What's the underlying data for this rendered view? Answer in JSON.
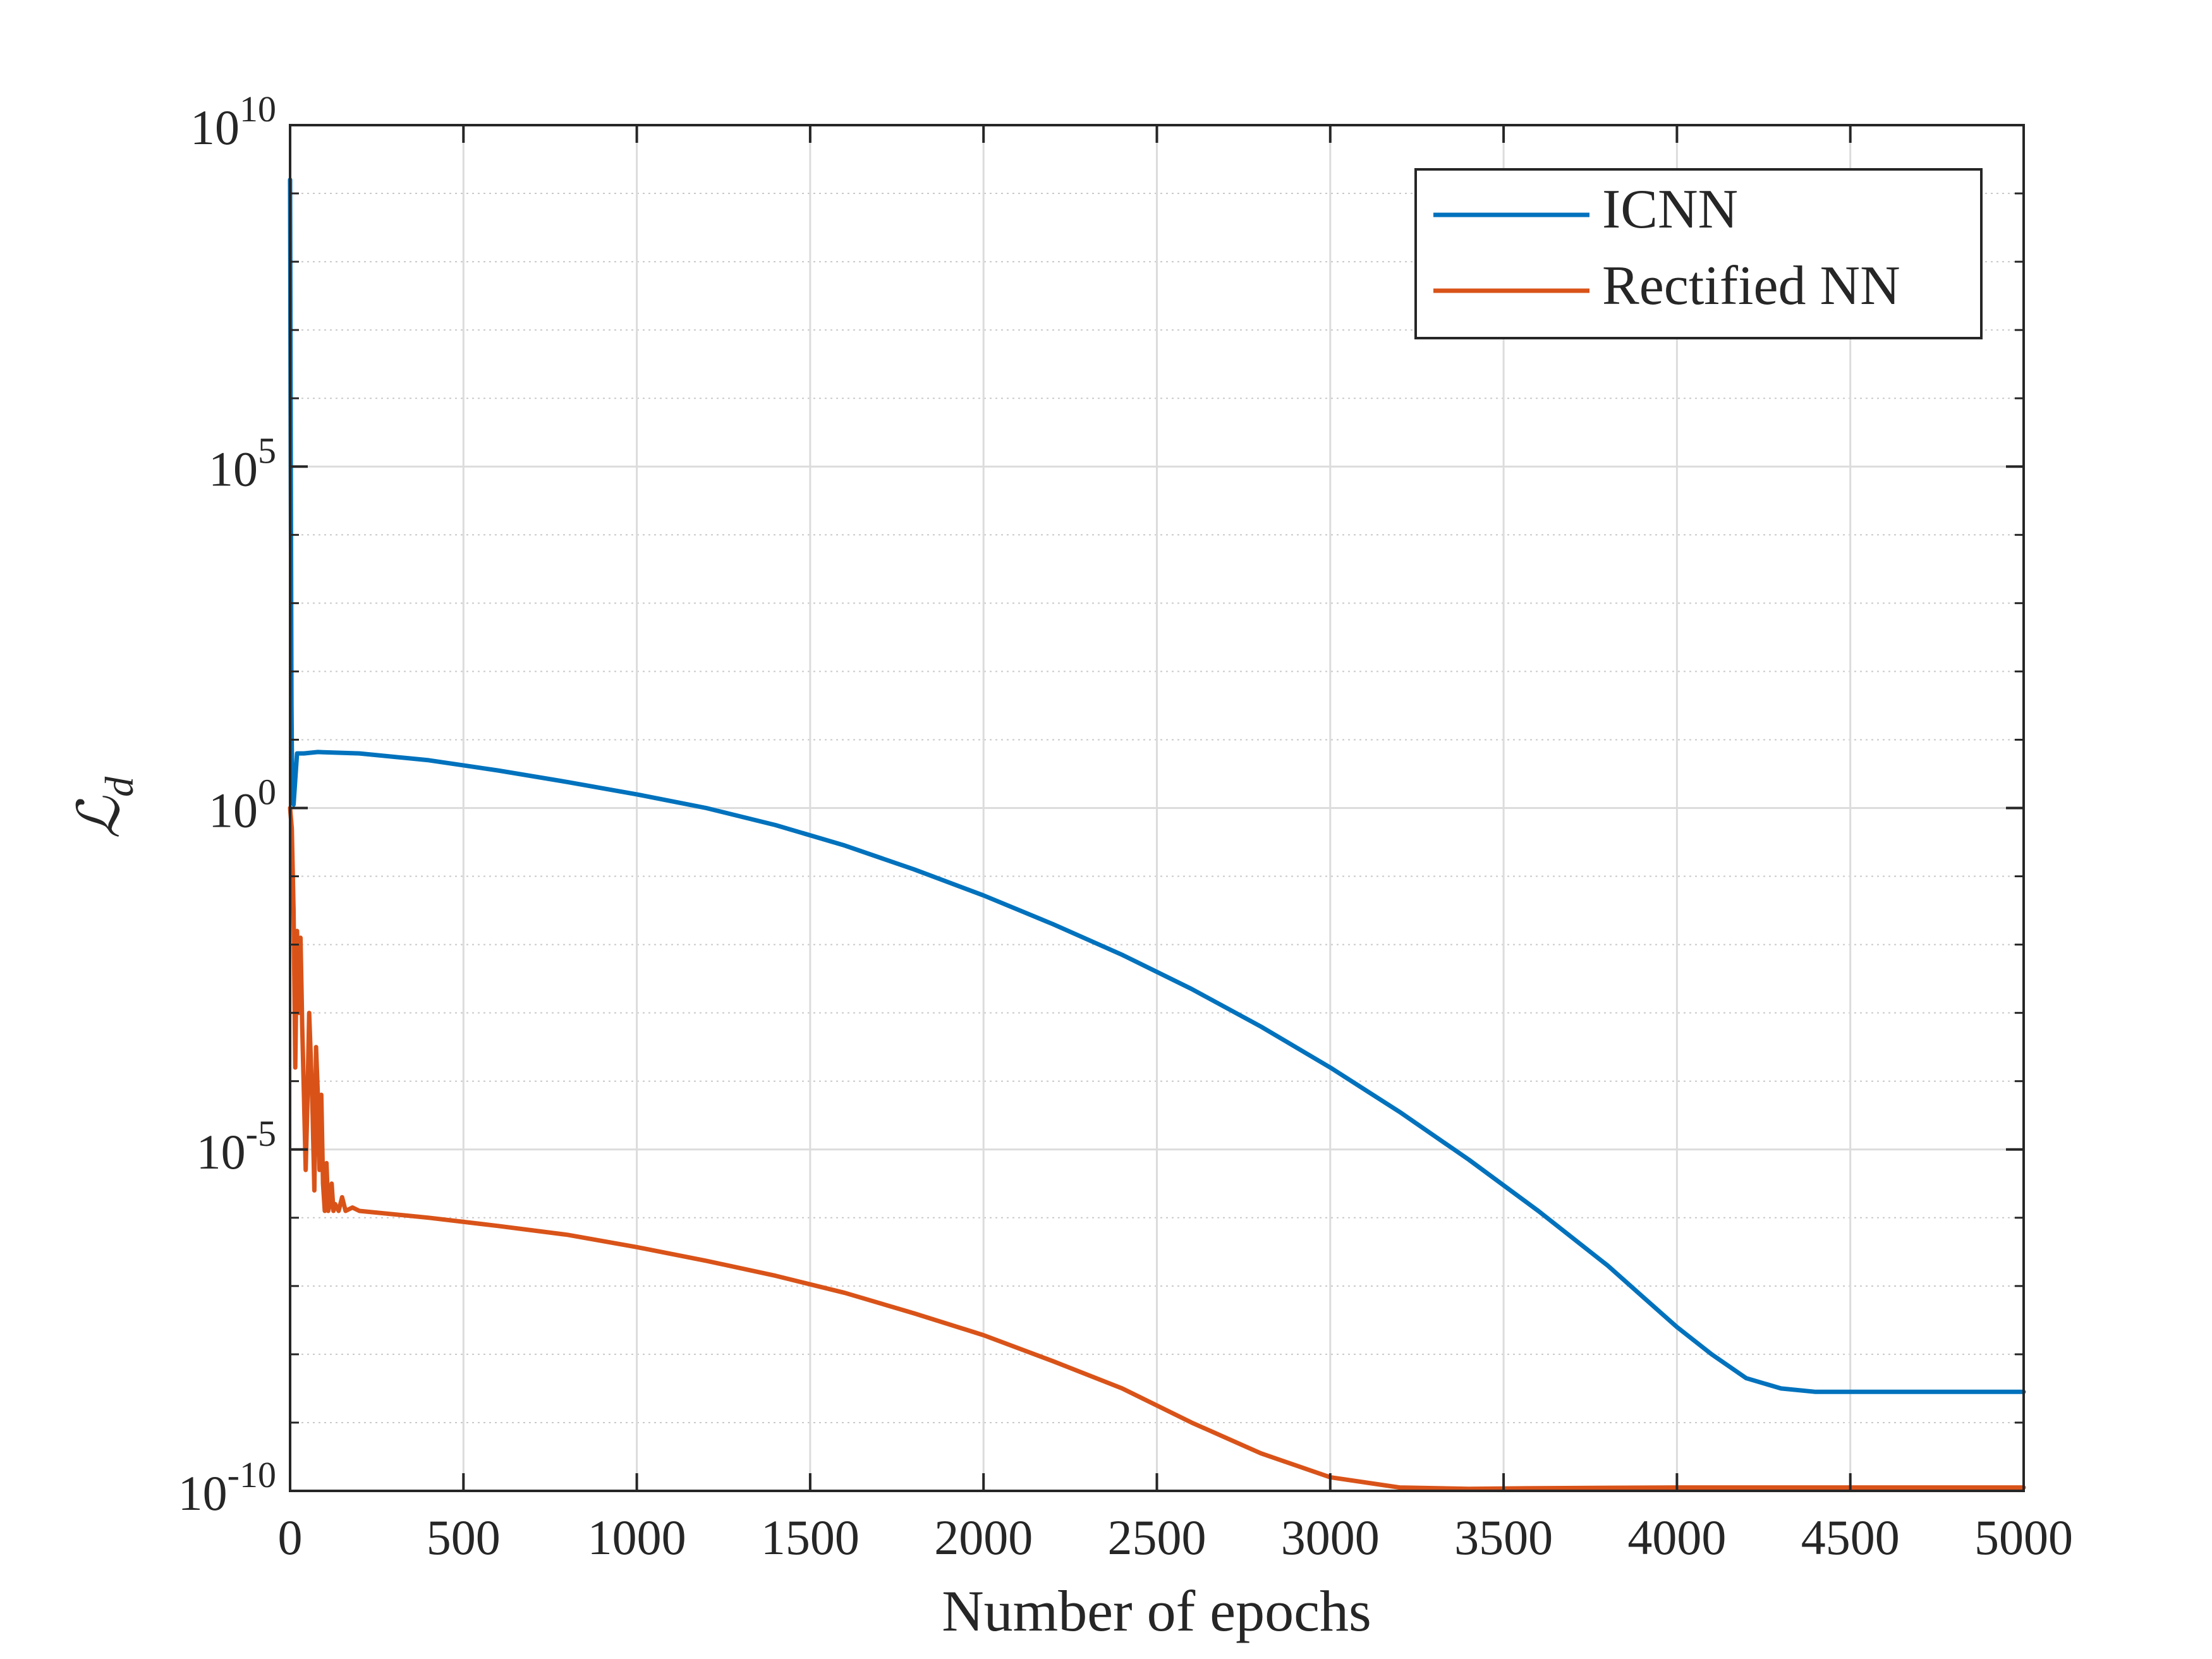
{
  "chart_data": {
    "type": "line",
    "x_tick_labels": [
      "0",
      "500",
      "1000",
      "1500",
      "2000",
      "2500",
      "3000",
      "3500",
      "4000",
      "4500",
      "5000"
    ],
    "y_tick_labels": [
      {
        "base": "10",
        "exp": "10"
      },
      {
        "base": "10",
        "exp": "5"
      },
      {
        "base": "10",
        "exp": "0"
      },
      {
        "base": "10",
        "exp": "-5"
      },
      {
        "base": "10",
        "exp": "-10"
      }
    ],
    "xlabel": "Number of epochs",
    "ylabel": {
      "symbol": "ℒ",
      "subscript": "d"
    },
    "xlim": [
      0,
      5000
    ],
    "ylim_log10": [
      -10,
      10
    ],
    "y_scale": "log",
    "grid": true,
    "legend_position": "top-right",
    "series": [
      {
        "name": "ICNN",
        "color": "#0072BD",
        "x": [
          0,
          2,
          4,
          6,
          10,
          20,
          40,
          80,
          200,
          400,
          600,
          800,
          1000,
          1200,
          1400,
          1600,
          1800,
          2000,
          2200,
          2400,
          2600,
          2800,
          3000,
          3200,
          3400,
          3600,
          3800,
          3900,
          4000,
          4100,
          4200,
          4300,
          4400,
          4500,
          4700,
          5000
        ],
        "log10_y": [
          9.2,
          5,
          1.5,
          0.2,
          0.05,
          0.8,
          0.8,
          0.82,
          0.8,
          0.7,
          0.55,
          0.38,
          0.2,
          0.0,
          -0.25,
          -0.55,
          -0.9,
          -1.28,
          -1.7,
          -2.15,
          -2.65,
          -3.2,
          -3.8,
          -4.45,
          -5.15,
          -5.9,
          -6.7,
          -7.15,
          -7.6,
          -8.0,
          -8.35,
          -8.5,
          -8.55,
          -8.55,
          -8.55,
          -8.55
        ]
      },
      {
        "name": "Rectified NN",
        "color": "#D95319",
        "x": [
          0,
          5,
          10,
          15,
          20,
          25,
          30,
          35,
          40,
          45,
          50,
          55,
          60,
          65,
          70,
          75,
          80,
          85,
          90,
          95,
          100,
          105,
          110,
          115,
          120,
          125,
          130,
          140,
          150,
          160,
          180,
          200,
          400,
          600,
          800,
          1000,
          1200,
          1400,
          1600,
          1800,
          2000,
          2200,
          2400,
          2600,
          2800,
          3000,
          3200,
          3400,
          3600,
          4000,
          4500,
          5000
        ],
        "log10_y": [
          0.0,
          -0.3,
          -1.5,
          -3.8,
          -1.8,
          -3.0,
          -1.9,
          -3.2,
          -4.2,
          -5.3,
          -4.3,
          -3.0,
          -3.7,
          -4.5,
          -5.6,
          -3.5,
          -4.2,
          -5.3,
          -4.2,
          -5.5,
          -5.9,
          -5.2,
          -5.9,
          -5.8,
          -5.5,
          -5.9,
          -5.8,
          -5.9,
          -5.7,
          -5.9,
          -5.85,
          -5.9,
          -6.0,
          -6.12,
          -6.25,
          -6.43,
          -6.63,
          -6.85,
          -7.1,
          -7.4,
          -7.72,
          -8.1,
          -8.5,
          -9.0,
          -9.45,
          -9.8,
          -9.95,
          -9.97,
          -9.96,
          -9.95,
          -9.95,
          -9.95
        ]
      }
    ]
  }
}
